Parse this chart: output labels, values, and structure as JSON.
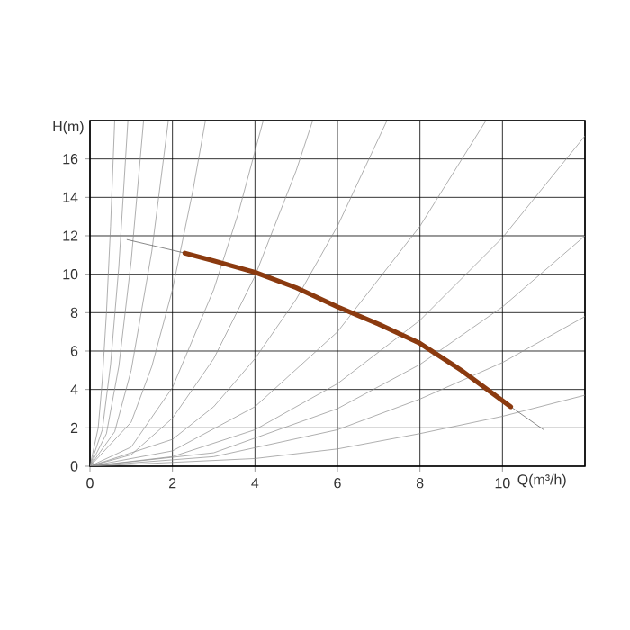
{
  "chart_data": {
    "type": "line",
    "xlabel": "Q(m³/h)",
    "ylabel": "H(m)",
    "xlim": [
      0,
      12
    ],
    "ylim": [
      0,
      18
    ],
    "xticks": [
      0,
      2,
      4,
      6,
      8,
      10
    ],
    "yticks": [
      0,
      2,
      4,
      6,
      8,
      10,
      12,
      14,
      16
    ],
    "grid": true,
    "series": [
      {
        "color": "#8c8c8c",
        "x": [
          0,
          0.2,
          0.3,
          0.4,
          0.5,
          0.6
        ],
        "values": [
          0,
          2,
          4.5,
          8,
          12.5,
          18
        ]
      },
      {
        "color": "#8c8c8c",
        "x": [
          0,
          0.3,
          0.5,
          0.7,
          0.92
        ],
        "values": [
          0,
          1.9,
          5.3,
          10.4,
          18
        ]
      },
      {
        "color": "#8c8c8c",
        "x": [
          0,
          0.4,
          0.7,
          1,
          1.3
        ],
        "values": [
          0,
          1.7,
          5.2,
          10.7,
          18
        ]
      },
      {
        "color": "#8c8c8c",
        "x": [
          0,
          0.6,
          1,
          1.5,
          1.9
        ],
        "values": [
          0,
          1.8,
          5,
          11.2,
          18
        ]
      },
      {
        "color": "#8c8c8c",
        "x": [
          0,
          1,
          1.5,
          2,
          2.5,
          2.8
        ],
        "values": [
          0,
          2.3,
          5.2,
          9.2,
          14.4,
          18
        ]
      },
      {
        "color": "#8c8c8c",
        "x": [
          0,
          1,
          2,
          3,
          3.6,
          4.2
        ],
        "values": [
          0,
          1,
          4.1,
          9.2,
          13.2,
          18
        ]
      },
      {
        "color": "#8c8c8c",
        "x": [
          0,
          1,
          2,
          3,
          4,
          5,
          5.4
        ],
        "values": [
          0,
          0.6,
          2.5,
          5.6,
          9.9,
          15.4,
          18
        ]
      },
      {
        "color": "#8c8c8c",
        "x": [
          0,
          2,
          3,
          4,
          5,
          6,
          7.2
        ],
        "values": [
          0,
          1.4,
          3.1,
          5.6,
          8.7,
          12.5,
          18
        ]
      },
      {
        "color": "#8c8c8c",
        "x": [
          0,
          2,
          4,
          6,
          8,
          9.6
        ],
        "values": [
          0,
          0.8,
          3.1,
          7,
          12.5,
          18
        ]
      },
      {
        "color": "#8c8c8c",
        "x": [
          0,
          2,
          4,
          6,
          8,
          10,
          12
        ],
        "values": [
          0,
          0.5,
          1.9,
          4.3,
          7.6,
          11.9,
          17.2
        ]
      },
      {
        "color": "#8c8c8c",
        "x": [
          0,
          3,
          6,
          8,
          10,
          12
        ],
        "values": [
          0,
          0.7,
          3,
          5.3,
          8.3,
          12
        ]
      },
      {
        "color": "#8c8c8c",
        "x": [
          0,
          3,
          6,
          8,
          10,
          12
        ],
        "values": [
          0,
          0.5,
          1.9,
          3.5,
          5.4,
          7.8
        ]
      },
      {
        "color": "#8c8c8c",
        "x": [
          0,
          4,
          6,
          8,
          10,
          12
        ],
        "values": [
          0,
          0.4,
          0.9,
          1.7,
          2.6,
          3.7
        ]
      },
      {
        "color": "#555555",
        "x": [
          0.9,
          2.3
        ],
        "values": [
          11.8,
          11.1
        ]
      },
      {
        "color": "#555555",
        "x": [
          10.2,
          11
        ],
        "values": [
          3.1,
          1.9
        ]
      },
      {
        "color": "#8b3a0f",
        "x": [
          2.3,
          3,
          4,
          5,
          6,
          7,
          8,
          9,
          10.2
        ],
        "values": [
          11.1,
          10.7,
          10.1,
          9.3,
          8.3,
          7.4,
          6.4,
          5.0,
          3.1
        ]
      }
    ]
  }
}
